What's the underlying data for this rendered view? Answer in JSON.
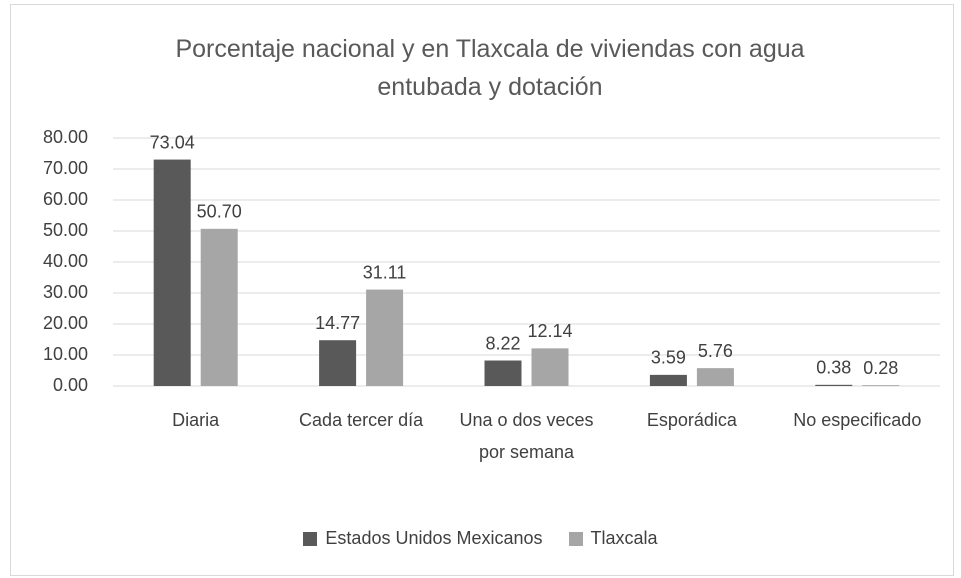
{
  "chart_data": {
    "type": "bar",
    "title": "Porcentaje nacional y en Tlaxcala de viviendas con agua entubada y dotación",
    "categories": [
      "Diaria",
      "Cada tercer día",
      "Una o dos veces por semana",
      "Esporádica",
      "No especificado"
    ],
    "series": [
      {
        "name": "Estados Unidos Mexicanos",
        "color": "#595959",
        "values": [
          73.04,
          14.77,
          8.22,
          3.59,
          0.38
        ],
        "value_labels": [
          "73.04",
          "14.77",
          "8.22",
          "3.59",
          "0.38"
        ]
      },
      {
        "name": "Tlaxcala",
        "color": "#a6a6a6",
        "values": [
          50.7,
          31.11,
          12.14,
          5.76,
          0.28
        ],
        "value_labels": [
          "50.70",
          "31.11",
          "12.14",
          "5.76",
          "0.28"
        ]
      }
    ],
    "ylim": [
      0,
      80
    ],
    "yticks": [
      {
        "value": 0,
        "label": "0.00"
      },
      {
        "value": 10,
        "label": "10.00"
      },
      {
        "value": 20,
        "label": "20.00"
      },
      {
        "value": 30,
        "label": "30.00"
      },
      {
        "value": 40,
        "label": "40.00"
      },
      {
        "value": 50,
        "label": "50.00"
      },
      {
        "value": 60,
        "label": "60.00"
      },
      {
        "value": 70,
        "label": "70.00"
      },
      {
        "value": 80,
        "label": "80.00"
      }
    ],
    "grid": true,
    "legend": "bottom"
  }
}
